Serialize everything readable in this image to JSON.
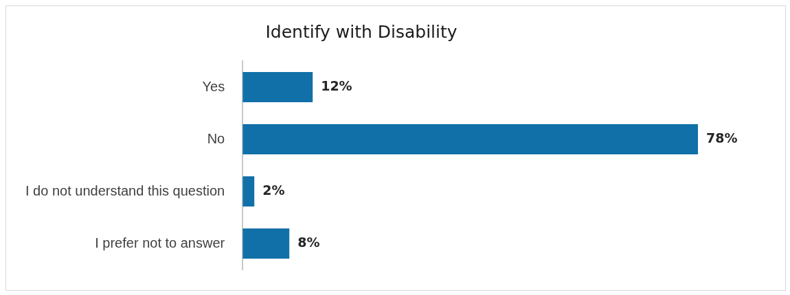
{
  "chart_data": {
    "type": "bar",
    "title": "Identify with Disability",
    "orientation": "horizontal",
    "categories": [
      "Yes",
      "No",
      "I do not understand this question",
      "I prefer not to answer"
    ],
    "values": [
      12,
      78,
      2,
      8
    ],
    "color": "#1170a8",
    "value_labels": [
      "12%",
      "78%",
      "2%",
      "8%"
    ],
    "tick_labels": "y"
  }
}
